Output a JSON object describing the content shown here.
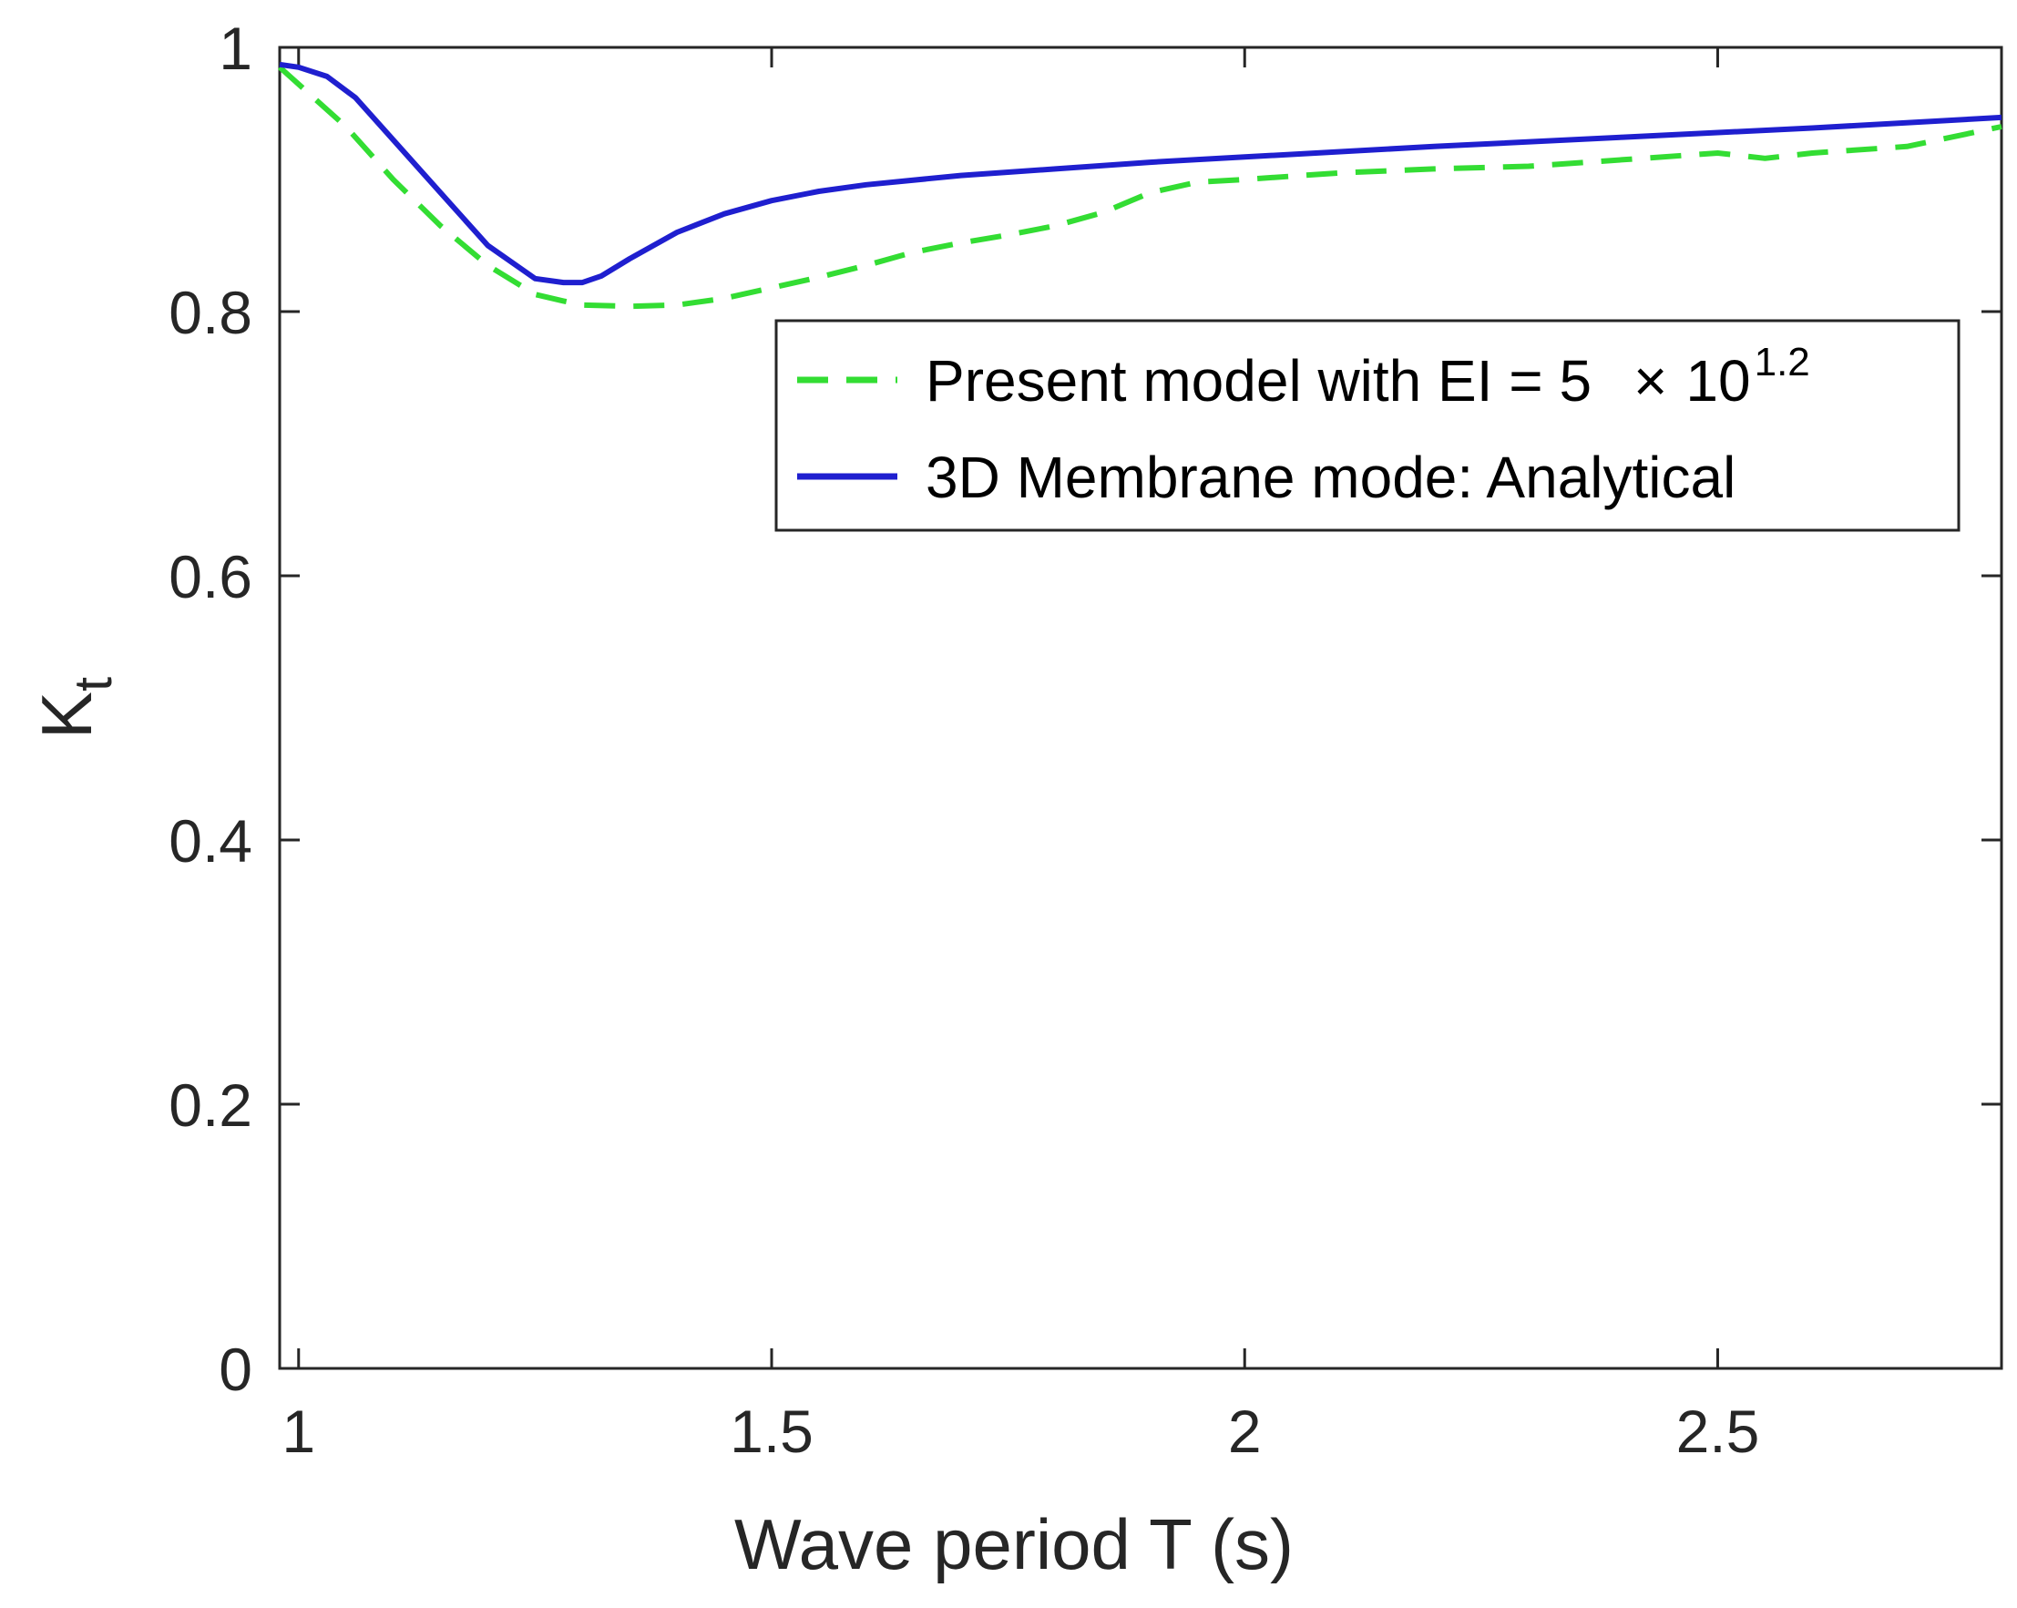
{
  "chart_data": {
    "type": "line",
    "title": "",
    "xlabel": "Wave period T (s)",
    "ylabel": {
      "main": "K",
      "subscript": "t"
    },
    "xlim": [
      0.98,
      2.8
    ],
    "ylim": [
      0,
      1
    ],
    "xticks": [
      1,
      1.5,
      2,
      2.5
    ],
    "xtick_labels": [
      "1",
      "1.5",
      "2",
      "2.5"
    ],
    "yticks": [
      0,
      0.2,
      0.4,
      0.6,
      0.8,
      1
    ],
    "ytick_labels": [
      "0",
      "0.2",
      "0.4",
      "0.6",
      "0.8",
      "1"
    ],
    "grid": false,
    "legend_position": "upper-right",
    "series": [
      {
        "name": "Present model with EI = 5 × 10^1.2",
        "legend_parts": {
          "main": "Present model with EI = 5",
          "times": "×",
          "base": "10",
          "exponent": "1.2"
        },
        "color": "#33dd33",
        "style": "dashed",
        "x": [
          0.98,
          1.05,
          1.1,
          1.15,
          1.2,
          1.25,
          1.28,
          1.3,
          1.35,
          1.4,
          1.45,
          1.5,
          1.55,
          1.6,
          1.65,
          1.7,
          1.75,
          1.8,
          1.85,
          1.9,
          1.95,
          2.0,
          2.1,
          2.2,
          2.3,
          2.4,
          2.5,
          2.55,
          2.6,
          2.7,
          2.8
        ],
        "y": [
          0.985,
          0.94,
          0.9,
          0.865,
          0.835,
          0.813,
          0.808,
          0.805,
          0.804,
          0.805,
          0.81,
          0.818,
          0.826,
          0.835,
          0.845,
          0.852,
          0.858,
          0.865,
          0.875,
          0.89,
          0.898,
          0.9,
          0.905,
          0.908,
          0.91,
          0.915,
          0.92,
          0.916,
          0.92,
          0.925,
          0.94
        ]
      },
      {
        "name": "3D Membrane mode: Analytical",
        "color": "#1f1fcf",
        "style": "solid",
        "x": [
          0.98,
          1.0,
          1.03,
          1.06,
          1.1,
          1.15,
          1.2,
          1.25,
          1.28,
          1.3,
          1.32,
          1.35,
          1.4,
          1.45,
          1.5,
          1.55,
          1.6,
          1.7,
          1.8,
          1.9,
          2.0,
          2.2,
          2.4,
          2.6,
          2.8
        ],
        "y": [
          0.987,
          0.985,
          0.978,
          0.962,
          0.93,
          0.89,
          0.85,
          0.825,
          0.822,
          0.822,
          0.827,
          0.84,
          0.86,
          0.874,
          0.884,
          0.891,
          0.896,
          0.903,
          0.908,
          0.913,
          0.917,
          0.925,
          0.932,
          0.939,
          0.947
        ]
      }
    ]
  }
}
